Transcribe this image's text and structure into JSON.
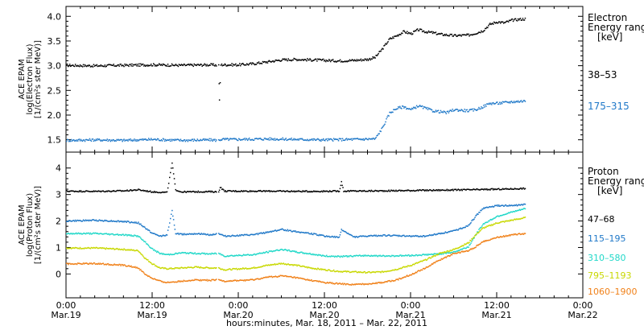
{
  "chart_data": [
    {
      "type": "scatter",
      "panel": "electron",
      "ylabel": [
        "ACE EPAM",
        "log(Electron Flux)",
        "[1/(cm²s ster MeV)]"
      ],
      "legend_title": [
        "Electron",
        "Energy range",
        "[keV]"
      ],
      "ylim": [
        1.25,
        4.2
      ],
      "yticks": [
        1.5,
        2.0,
        2.5,
        3.0,
        3.5,
        4.0
      ],
      "ytick_labels": [
        "1.5",
        "2.0",
        "2.5",
        "3.0",
        "3.5",
        "4.0"
      ],
      "series": [
        {
          "name": "38–53",
          "color": "#000000",
          "points": [
            [
              0,
              3.02
            ],
            [
              4,
              3.01
            ],
            [
              8,
              3.02
            ],
            [
              12,
              3.03
            ],
            [
              16,
              3.02
            ],
            [
              20,
              3.03
            ],
            [
              21.2,
              3.02
            ],
            [
              21.3,
              2.3
            ],
            [
              21.5,
              3.03
            ],
            [
              24,
              3.03
            ],
            [
              26,
              3.05
            ],
            [
              28,
              3.09
            ],
            [
              30,
              3.13
            ],
            [
              32,
              3.14
            ],
            [
              34,
              3.13
            ],
            [
              36,
              3.12
            ],
            [
              38,
              3.11
            ],
            [
              40,
              3.12
            ],
            [
              42,
              3.14
            ],
            [
              43,
              3.18
            ],
            [
              44,
              3.35
            ],
            [
              45,
              3.55
            ],
            [
              46,
              3.62
            ],
            [
              47,
              3.7
            ],
            [
              48,
              3.66
            ],
            [
              49,
              3.74
            ],
            [
              50,
              3.7
            ],
            [
              51,
              3.68
            ],
            [
              52,
              3.65
            ],
            [
              54,
              3.62
            ],
            [
              56,
              3.63
            ],
            [
              57,
              3.67
            ],
            [
              58,
              3.72
            ],
            [
              59,
              3.85
            ],
            [
              60,
              3.9
            ],
            [
              61,
              3.88
            ],
            [
              62,
              3.93
            ],
            [
              63,
              3.95
            ],
            [
              64,
              3.96
            ]
          ]
        },
        {
          "name": "175–315",
          "color": "#1f78c8",
          "points": [
            [
              0,
              1.5
            ],
            [
              4,
              1.51
            ],
            [
              8,
              1.5
            ],
            [
              12,
              1.52
            ],
            [
              16,
              1.5
            ],
            [
              20,
              1.51
            ],
            [
              21.2,
              1.5
            ],
            [
              21.5,
              1.52
            ],
            [
              24,
              1.52
            ],
            [
              28,
              1.53
            ],
            [
              32,
              1.52
            ],
            [
              36,
              1.51
            ],
            [
              40,
              1.52
            ],
            [
              43,
              1.53
            ],
            [
              44,
              1.75
            ],
            [
              45,
              2.05
            ],
            [
              46,
              2.15
            ],
            [
              47,
              2.18
            ],
            [
              48,
              2.12
            ],
            [
              49,
              2.2
            ],
            [
              50,
              2.15
            ],
            [
              51,
              2.1
            ],
            [
              52,
              2.08
            ],
            [
              53,
              2.06
            ],
            [
              54,
              2.12
            ],
            [
              56,
              2.1
            ],
            [
              57,
              2.12
            ],
            [
              58,
              2.18
            ],
            [
              59,
              2.25
            ],
            [
              60,
              2.25
            ],
            [
              62,
              2.28
            ],
            [
              64,
              2.3
            ]
          ]
        }
      ]
    },
    {
      "type": "scatter",
      "panel": "proton",
      "ylabel": [
        "ACE EPAM",
        "log(Proton Flux)",
        "[1/(cm²s ster MeV)]"
      ],
      "legend_title": [
        "Proton",
        "Energy range",
        "[keV]"
      ],
      "ylim": [
        -0.9,
        4.6
      ],
      "yticks": [
        0,
        1,
        2,
        3,
        4
      ],
      "ytick_labels": [
        "0",
        "1",
        "2",
        "3",
        "4"
      ],
      "series": [
        {
          "name": "47–68",
          "color": "#000000",
          "points": [
            [
              0,
              3.15
            ],
            [
              4,
              3.14
            ],
            [
              8,
              3.16
            ],
            [
              10,
              3.2
            ],
            [
              12,
              3.12
            ],
            [
              14,
              3.1
            ],
            [
              14.7,
              4.2
            ],
            [
              15.2,
              3.2
            ],
            [
              16,
              3.12
            ],
            [
              20,
              3.13
            ],
            [
              21.2,
              3.12
            ],
            [
              21.4,
              3.3
            ],
            [
              22,
              3.15
            ],
            [
              28,
              3.15
            ],
            [
              34,
              3.14
            ],
            [
              38,
              3.15
            ],
            [
              38.3,
              3.5
            ],
            [
              38.6,
              3.15
            ],
            [
              44,
              3.16
            ],
            [
              50,
              3.18
            ],
            [
              56,
              3.2
            ],
            [
              60,
              3.22
            ],
            [
              64,
              3.25
            ]
          ]
        },
        {
          "name": "115–195",
          "color": "#1f78c8",
          "points": [
            [
              0,
              2.02
            ],
            [
              4,
              2.05
            ],
            [
              8,
              2.0
            ],
            [
              10,
              1.95
            ],
            [
              11,
              1.75
            ],
            [
              12,
              1.55
            ],
            [
              13,
              1.45
            ],
            [
              14,
              1.5
            ],
            [
              14.7,
              2.4
            ],
            [
              15.2,
              1.55
            ],
            [
              16,
              1.52
            ],
            [
              18,
              1.55
            ],
            [
              20,
              1.5
            ],
            [
              21.2,
              1.55
            ],
            [
              22,
              1.45
            ],
            [
              26,
              1.5
            ],
            [
              28,
              1.6
            ],
            [
              30,
              1.7
            ],
            [
              32,
              1.62
            ],
            [
              34,
              1.55
            ],
            [
              36,
              1.45
            ],
            [
              38,
              1.4
            ],
            [
              38.3,
              1.7
            ],
            [
              40,
              1.42
            ],
            [
              42,
              1.45
            ],
            [
              44,
              1.48
            ],
            [
              48,
              1.45
            ],
            [
              50,
              1.45
            ],
            [
              52,
              1.55
            ],
            [
              54,
              1.65
            ],
            [
              56,
              1.85
            ],
            [
              57,
              2.2
            ],
            [
              58,
              2.5
            ],
            [
              60,
              2.6
            ],
            [
              62,
              2.6
            ],
            [
              64,
              2.65
            ]
          ]
        },
        {
          "name": "310–580",
          "color": "#20d8c8",
          "points": [
            [
              0,
              1.55
            ],
            [
              4,
              1.55
            ],
            [
              8,
              1.5
            ],
            [
              10,
              1.45
            ],
            [
              11,
              1.2
            ],
            [
              12,
              0.95
            ],
            [
              13,
              0.8
            ],
            [
              14,
              0.75
            ],
            [
              15,
              0.78
            ],
            [
              16,
              0.82
            ],
            [
              18,
              0.8
            ],
            [
              20,
              0.78
            ],
            [
              21.2,
              0.8
            ],
            [
              22,
              0.7
            ],
            [
              26,
              0.75
            ],
            [
              28,
              0.85
            ],
            [
              30,
              0.95
            ],
            [
              32,
              0.85
            ],
            [
              34,
              0.78
            ],
            [
              36,
              0.7
            ],
            [
              38,
              0.68
            ],
            [
              40,
              0.7
            ],
            [
              42,
              0.72
            ],
            [
              44,
              0.7
            ],
            [
              48,
              0.72
            ],
            [
              50,
              0.75
            ],
            [
              52,
              0.78
            ],
            [
              54,
              0.85
            ],
            [
              56,
              1.05
            ],
            [
              57,
              1.5
            ],
            [
              58,
              1.9
            ],
            [
              60,
              2.2
            ],
            [
              62,
              2.35
            ],
            [
              64,
              2.5
            ]
          ]
        },
        {
          "name": "795–1193",
          "color": "#c8d800",
          "points": [
            [
              0,
              1.0
            ],
            [
              4,
              1.0
            ],
            [
              8,
              0.95
            ],
            [
              10,
              0.9
            ],
            [
              11,
              0.6
            ],
            [
              12,
              0.4
            ],
            [
              13,
              0.25
            ],
            [
              14,
              0.22
            ],
            [
              16,
              0.25
            ],
            [
              18,
              0.28
            ],
            [
              20,
              0.25
            ],
            [
              21.2,
              0.25
            ],
            [
              22,
              0.18
            ],
            [
              26,
              0.25
            ],
            [
              28,
              0.35
            ],
            [
              30,
              0.42
            ],
            [
              32,
              0.35
            ],
            [
              34,
              0.25
            ],
            [
              36,
              0.18
            ],
            [
              38,
              0.12
            ],
            [
              40,
              0.1
            ],
            [
              42,
              0.08
            ],
            [
              44,
              0.1
            ],
            [
              46,
              0.2
            ],
            [
              48,
              0.35
            ],
            [
              50,
              0.55
            ],
            [
              52,
              0.8
            ],
            [
              54,
              0.95
            ],
            [
              56,
              1.2
            ],
            [
              57,
              1.5
            ],
            [
              58,
              1.75
            ],
            [
              60,
              1.95
            ],
            [
              62,
              2.05
            ],
            [
              64,
              2.15
            ]
          ]
        },
        {
          "name": "1060–1900",
          "color": "#f08018",
          "points": [
            [
              0,
              0.4
            ],
            [
              4,
              0.42
            ],
            [
              8,
              0.35
            ],
            [
              10,
              0.25
            ],
            [
              11,
              0.0
            ],
            [
              12,
              -0.15
            ],
            [
              13,
              -0.25
            ],
            [
              14,
              -0.3
            ],
            [
              16,
              -0.25
            ],
            [
              18,
              -0.2
            ],
            [
              20,
              -0.22
            ],
            [
              21.2,
              -0.2
            ],
            [
              22,
              -0.25
            ],
            [
              26,
              -0.2
            ],
            [
              28,
              -0.1
            ],
            [
              30,
              -0.05
            ],
            [
              32,
              -0.12
            ],
            [
              34,
              -0.22
            ],
            [
              36,
              -0.3
            ],
            [
              38,
              -0.35
            ],
            [
              40,
              -0.38
            ],
            [
              42,
              -0.35
            ],
            [
              44,
              -0.3
            ],
            [
              46,
              -0.2
            ],
            [
              48,
              0.0
            ],
            [
              50,
              0.25
            ],
            [
              52,
              0.55
            ],
            [
              54,
              0.8
            ],
            [
              56,
              0.9
            ],
            [
              57,
              1.05
            ],
            [
              58,
              1.25
            ],
            [
              60,
              1.4
            ],
            [
              62,
              1.5
            ],
            [
              64,
              1.55
            ]
          ]
        }
      ]
    }
  ],
  "x_axis": {
    "xlim": [
      0,
      72
    ],
    "ticks": [
      0,
      12,
      24,
      36,
      48,
      60,
      72
    ],
    "tick_time_labels": [
      "0:00",
      "12:00",
      "0:00",
      "12:00",
      "0:00",
      "12:00",
      "0:00"
    ],
    "tick_date_labels": [
      "Mar.19",
      "Mar.19",
      "Mar.20",
      "Mar.20",
      "Mar.21",
      "Mar.21",
      "Mar.22"
    ],
    "xlabel": "hours:minutes, Mar. 18, 2011 – Mar. 22, 2011"
  }
}
